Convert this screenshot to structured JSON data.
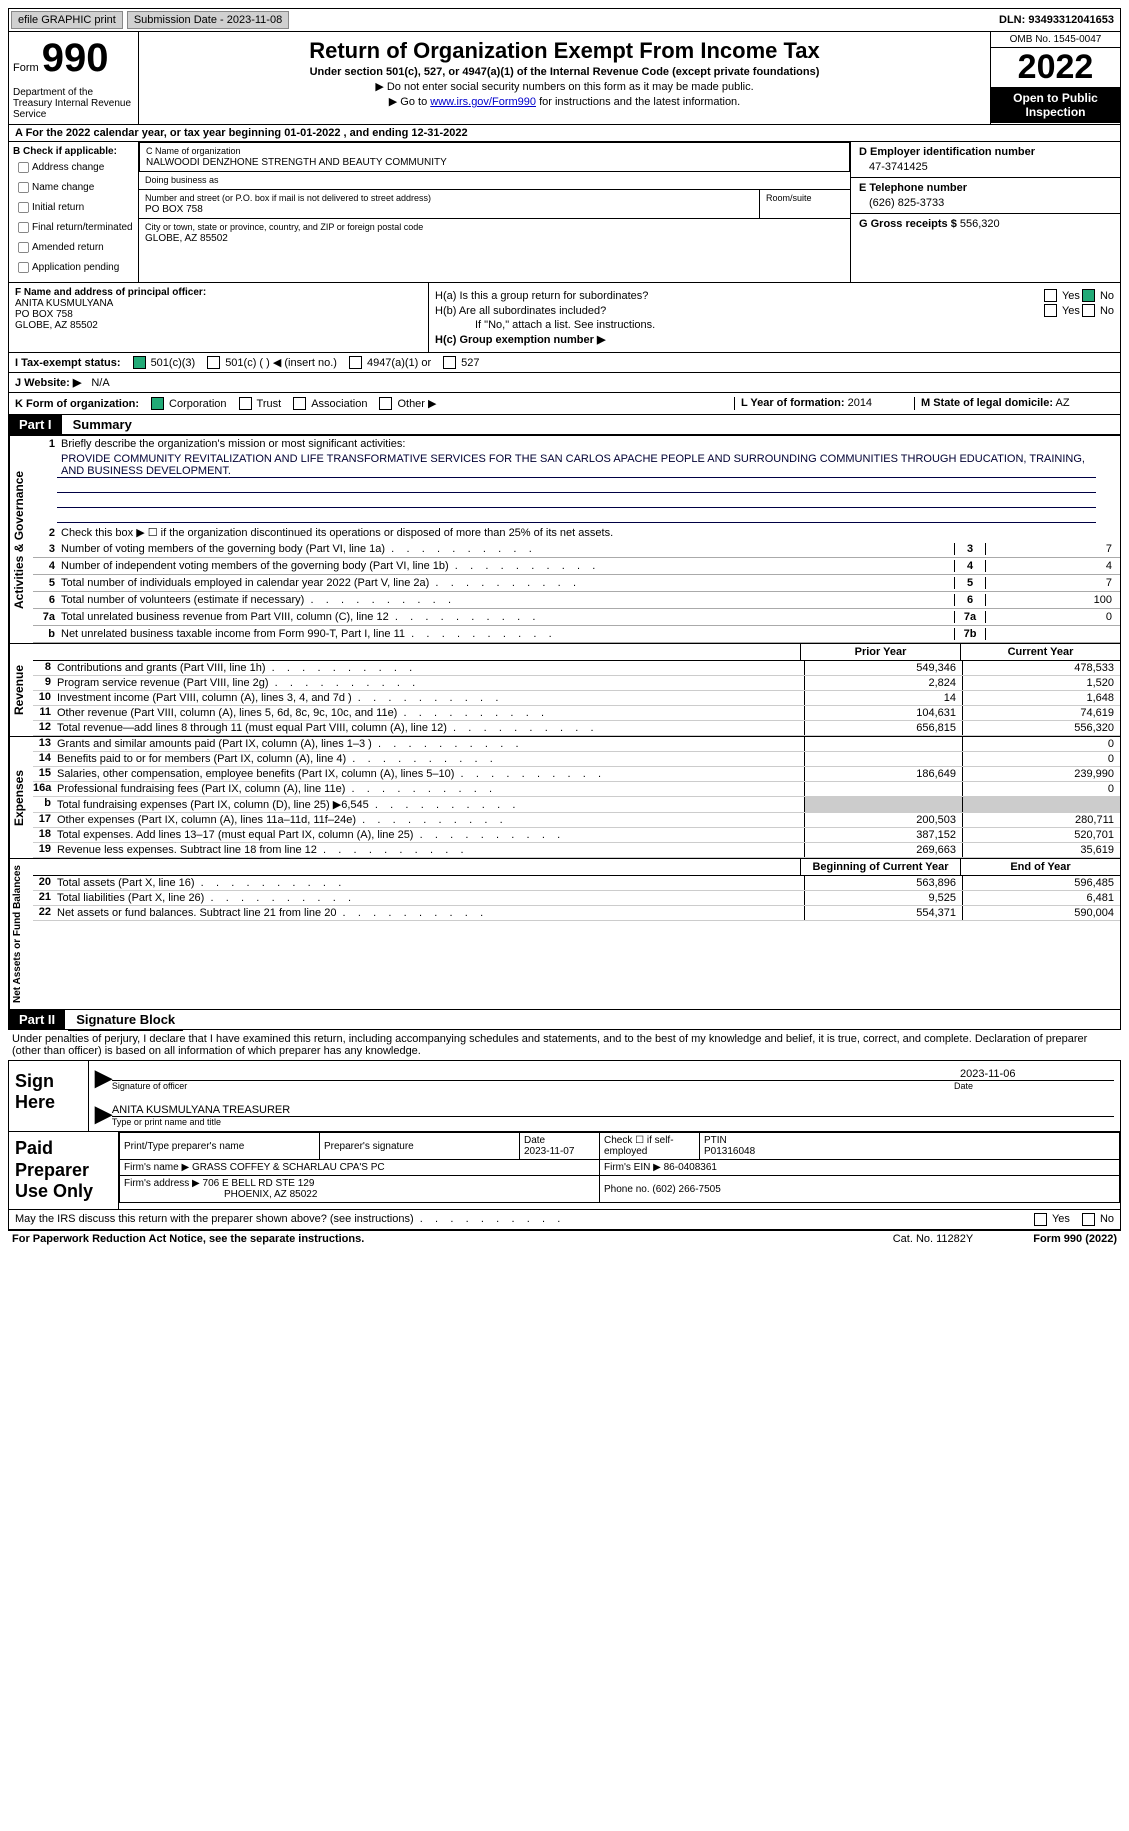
{
  "topbar": {
    "efile": "efile GRAPHIC print",
    "sub_label": "Submission Date - 2023-11-08",
    "dln": "DLN: 93493312041653"
  },
  "header": {
    "form_word": "Form",
    "form_num": "990",
    "title": "Return of Organization Exempt From Income Tax",
    "sub1": "Under section 501(c), 527, or 4947(a)(1) of the Internal Revenue Code (except private foundations)",
    "sub2": "▶ Do not enter social security numbers on this form as it may be made public.",
    "sub3_pre": "▶ Go to ",
    "sub3_link": "www.irs.gov/Form990",
    "sub3_post": " for instructions and the latest information.",
    "dept": "Department of the Treasury Internal Revenue Service",
    "omb": "OMB No. 1545-0047",
    "year": "2022",
    "open": "Open to Public Inspection"
  },
  "rowA": "A For the 2022 calendar year, or tax year beginning 01-01-2022   , and ending 12-31-2022",
  "sectionB": {
    "header": "B Check if applicable:",
    "items": [
      "Address change",
      "Name change",
      "Initial return",
      "Final return/terminated",
      "Amended return",
      "Application pending"
    ]
  },
  "sectionC": {
    "name_lbl": "C Name of organization",
    "name": "NALWOODI DENZHONE STRENGTH AND BEAUTY COMMUNITY",
    "dba_lbl": "Doing business as",
    "dba": "",
    "addr_lbl": "Number and street (or P.O. box if mail is not delivered to street address)",
    "room_lbl": "Room/suite",
    "addr": "PO BOX 758",
    "city_lbl": "City or town, state or province, country, and ZIP or foreign postal code",
    "city": "GLOBE, AZ  85502"
  },
  "sectionD": {
    "lbl": "D Employer identification number",
    "val": "47-3741425"
  },
  "sectionE": {
    "lbl": "E Telephone number",
    "val": "(626) 825-3733"
  },
  "sectionG": {
    "lbl": "G Gross receipts $",
    "val": "556,320"
  },
  "sectionF": {
    "lbl": "F Name and address of principal officer:",
    "name": "ANITA KUSMULYANA",
    "addr1": "PO BOX 758",
    "addr2": "GLOBE, AZ  85502"
  },
  "sectionH": {
    "a_lbl": "H(a)  Is this a group return for subordinates?",
    "a_no_checked": true,
    "b_lbl": "H(b)  Are all subordinates included?",
    "b_note": "If \"No,\" attach a list. See instructions.",
    "c_lbl": "H(c)  Group exemption number ▶"
  },
  "rowI": {
    "lbl": "I   Tax-exempt status:",
    "o1": "501(c)(3)",
    "o2": "501(c) (  ) ◀ (insert no.)",
    "o3": "4947(a)(1) or",
    "o4": "527"
  },
  "rowJ": {
    "lbl": "J   Website: ▶",
    "val": "N/A"
  },
  "rowK": {
    "lbl": "K Form of organization:",
    "o1": "Corporation",
    "o2": "Trust",
    "o3": "Association",
    "o4": "Other ▶"
  },
  "rowL": {
    "lbl": "L Year of formation:",
    "val": "2014"
  },
  "rowM": {
    "lbl": "M State of legal domicile:",
    "val": "AZ"
  },
  "part1": {
    "hdr": "Part I",
    "title": "Summary"
  },
  "summary": {
    "vlabels": [
      "Activities & Governance",
      "Revenue",
      "Expenses",
      "Net Assets or Fund Balances"
    ],
    "line1_lbl": "Briefly describe the organization's mission or most significant activities:",
    "mission": "PROVIDE COMMUNITY REVITALIZATION AND LIFE TRANSFORMATIVE SERVICES FOR THE SAN CARLOS APACHE PEOPLE AND SURROUNDING COMMUNITIES THROUGH EDUCATION, TRAINING, AND BUSINESS DEVELOPMENT.",
    "line2": "Check this box ▶ ☐  if the organization discontinued its operations or disposed of more than 25% of its net assets.",
    "gov_lines": [
      {
        "n": "3",
        "t": "Number of voting members of the governing body (Part VI, line 1a)",
        "bn": "3",
        "bv": "7"
      },
      {
        "n": "4",
        "t": "Number of independent voting members of the governing body (Part VI, line 1b)",
        "bn": "4",
        "bv": "4"
      },
      {
        "n": "5",
        "t": "Total number of individuals employed in calendar year 2022 (Part V, line 2a)",
        "bn": "5",
        "bv": "7"
      },
      {
        "n": "6",
        "t": "Total number of volunteers (estimate if necessary)",
        "bn": "6",
        "bv": "100"
      },
      {
        "n": "7a",
        "t": "Total unrelated business revenue from Part VIII, column (C), line 12",
        "bn": "7a",
        "bv": "0"
      },
      {
        "n": "b",
        "t": "Net unrelated business taxable income from Form 990-T, Part I, line 11",
        "bn": "7b",
        "bv": ""
      }
    ],
    "col_py": "Prior Year",
    "col_cy": "Current Year",
    "rev_lines": [
      {
        "n": "8",
        "t": "Contributions and grants (Part VIII, line 1h)",
        "py": "549,346",
        "cy": "478,533"
      },
      {
        "n": "9",
        "t": "Program service revenue (Part VIII, line 2g)",
        "py": "2,824",
        "cy": "1,520"
      },
      {
        "n": "10",
        "t": "Investment income (Part VIII, column (A), lines 3, 4, and 7d )",
        "py": "14",
        "cy": "1,648"
      },
      {
        "n": "11",
        "t": "Other revenue (Part VIII, column (A), lines 5, 6d, 8c, 9c, 10c, and 11e)",
        "py": "104,631",
        "cy": "74,619"
      },
      {
        "n": "12",
        "t": "Total revenue—add lines 8 through 11 (must equal Part VIII, column (A), line 12)",
        "py": "656,815",
        "cy": "556,320"
      }
    ],
    "exp_lines": [
      {
        "n": "13",
        "t": "Grants and similar amounts paid (Part IX, column (A), lines 1–3 )",
        "py": "",
        "cy": "0"
      },
      {
        "n": "14",
        "t": "Benefits paid to or for members (Part IX, column (A), line 4)",
        "py": "",
        "cy": "0"
      },
      {
        "n": "15",
        "t": "Salaries, other compensation, employee benefits (Part IX, column (A), lines 5–10)",
        "py": "186,649",
        "cy": "239,990"
      },
      {
        "n": "16a",
        "t": "Professional fundraising fees (Part IX, column (A), line 11e)",
        "py": "",
        "cy": "0"
      },
      {
        "n": "b",
        "t": "Total fundraising expenses (Part IX, column (D), line 25) ▶6,545",
        "py": "GREY",
        "cy": "GREY"
      },
      {
        "n": "17",
        "t": "Other expenses (Part IX, column (A), lines 11a–11d, 11f–24e)",
        "py": "200,503",
        "cy": "280,711"
      },
      {
        "n": "18",
        "t": "Total expenses. Add lines 13–17 (must equal Part IX, column (A), line 25)",
        "py": "387,152",
        "cy": "520,701"
      },
      {
        "n": "19",
        "t": "Revenue less expenses. Subtract line 18 from line 12",
        "py": "269,663",
        "cy": "35,619"
      }
    ],
    "col_bcy": "Beginning of Current Year",
    "col_eoy": "End of Year",
    "na_lines": [
      {
        "n": "20",
        "t": "Total assets (Part X, line 16)",
        "py": "563,896",
        "cy": "596,485"
      },
      {
        "n": "21",
        "t": "Total liabilities (Part X, line 26)",
        "py": "9,525",
        "cy": "6,481"
      },
      {
        "n": "22",
        "t": "Net assets or fund balances. Subtract line 21 from line 20",
        "py": "554,371",
        "cy": "590,004"
      }
    ]
  },
  "part2": {
    "hdr": "Part II",
    "title": "Signature Block"
  },
  "decl": "Under penalties of perjury, I declare that I have examined this return, including accompanying schedules and statements, and to the best of my knowledge and belief, it is true, correct, and complete. Declaration of preparer (other than officer) is based on all information of which preparer has any knowledge.",
  "sign": {
    "lbl": "Sign Here",
    "sig_date": "2023-11-06",
    "sig_cap1": "Signature of officer",
    "sig_cap1b": "Date",
    "name": "ANITA KUSMULYANA  TREASURER",
    "sig_cap2": "Type or print name and title"
  },
  "paid": {
    "lbl": "Paid Preparer Use Only",
    "h1": "Print/Type preparer's name",
    "h2": "Preparer's signature",
    "h3_lbl": "Date",
    "h3_val": "2023-11-07",
    "h4_lbl": "Check ☐ if self-employed",
    "h5_lbl": "PTIN",
    "h5_val": "P01316048",
    "firm_lbl": "Firm's name    ▶",
    "firm_val": "GRASS COFFEY & SCHARLAU CPA'S PC",
    "ein_lbl": "Firm's EIN ▶",
    "ein_val": "86-0408361",
    "addr_lbl": "Firm's address ▶",
    "addr_val": "706 E BELL RD STE 129",
    "addr_val2": "PHOENIX, AZ  85022",
    "phone_lbl": "Phone no.",
    "phone_val": "(602) 266-7505"
  },
  "may_irs": "May the IRS discuss this return with the preparer shown above? (see instructions)",
  "footer": {
    "left": "For Paperwork Reduction Act Notice, see the separate instructions.",
    "mid": "Cat. No. 11282Y",
    "right": "Form 990 (2022)"
  },
  "colors": {
    "link": "#0000cc",
    "black": "#000000",
    "checkgreen": "#22aa77",
    "grey": "#cccccc"
  }
}
